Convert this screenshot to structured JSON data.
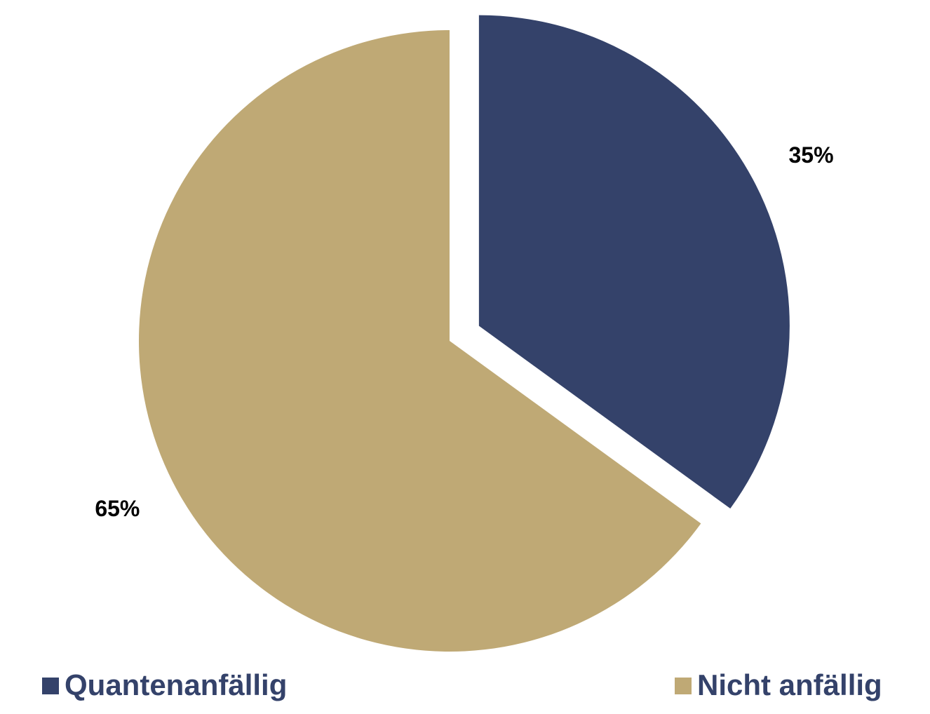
{
  "chart_data": {
    "type": "pie",
    "categories": [
      "Quantenanfällig",
      "Nicht anfällig"
    ],
    "values": [
      35,
      65
    ],
    "value_labels": [
      "35%",
      "65%"
    ],
    "colors": [
      "#34426a",
      "#bfa975"
    ]
  }
}
